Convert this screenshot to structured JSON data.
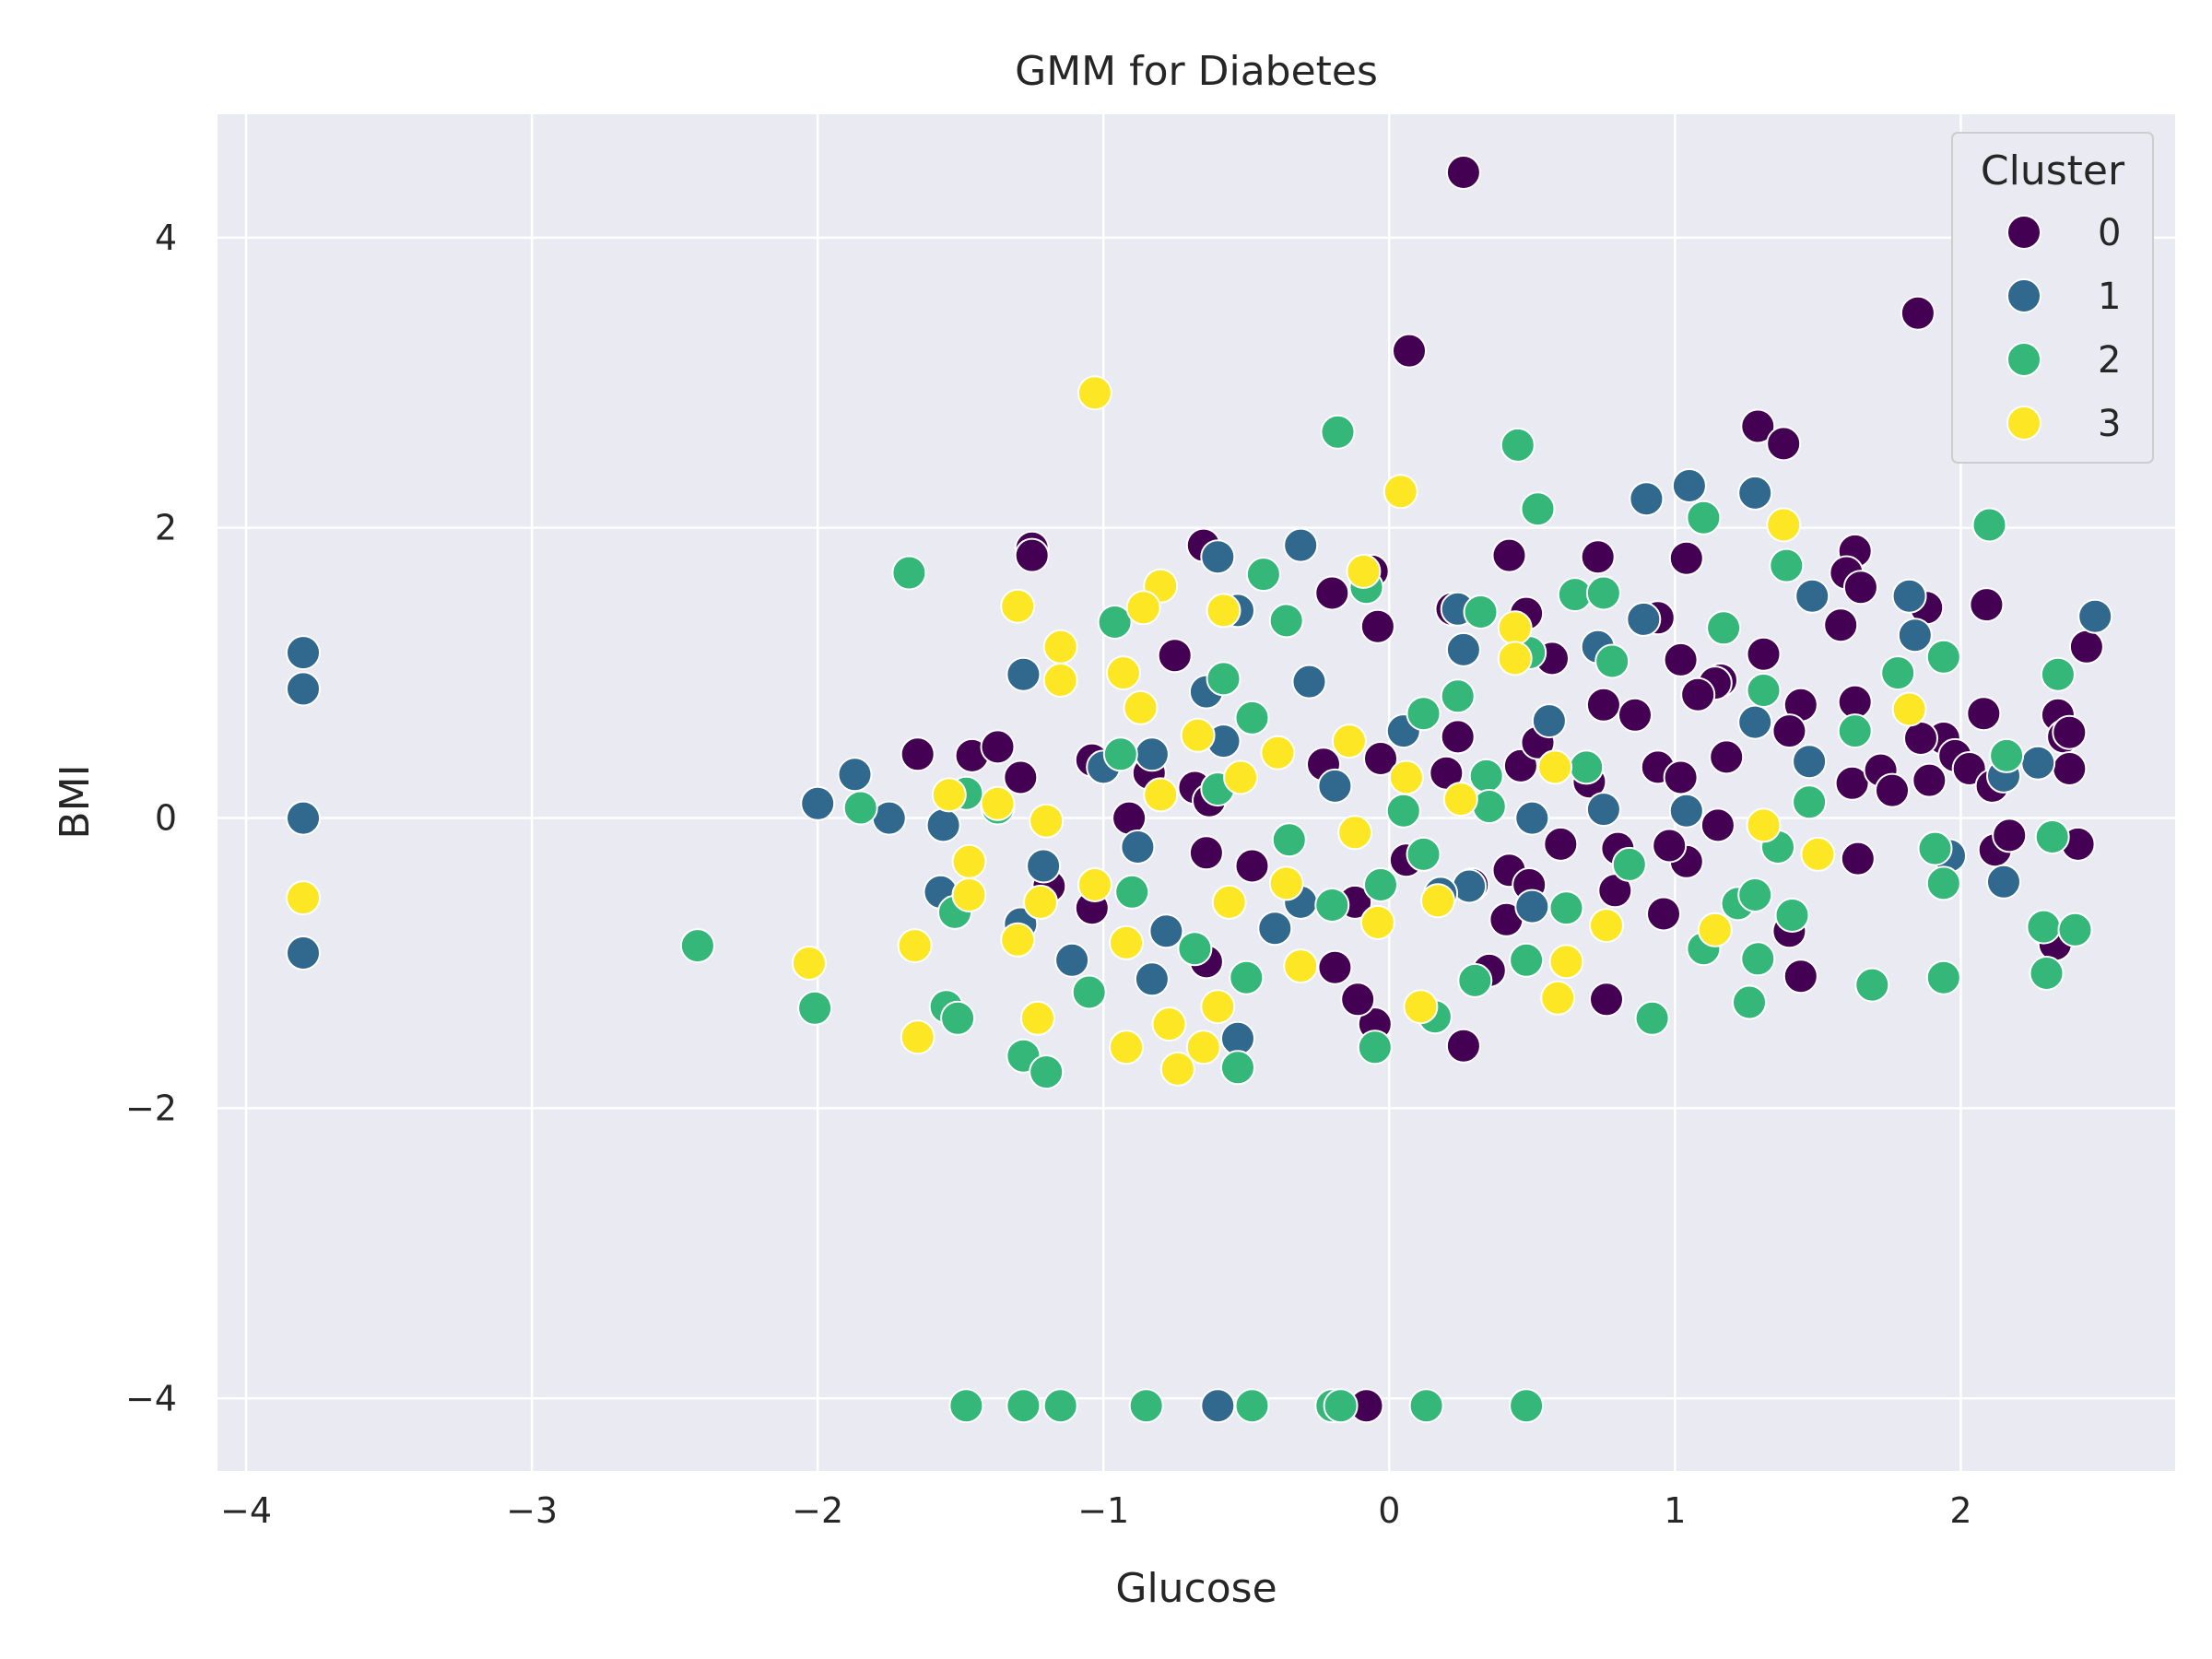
{
  "chart_data": {
    "type": "scatter",
    "title": "GMM for Diabetes",
    "xlabel": "Glucose",
    "ylabel": "BMI",
    "xlim": [
      -4.1,
      2.75
    ],
    "ylim": [
      -4.5,
      4.85
    ],
    "xticks": [
      -4,
      -3,
      -2,
      -1,
      0,
      1,
      2
    ],
    "yticks": [
      -4,
      -2,
      0,
      2,
      4
    ],
    "xtick_labels": [
      "−4",
      "−3",
      "−2",
      "−1",
      "0",
      "1",
      "2"
    ],
    "ytick_labels": [
      "−4",
      "−2",
      "0",
      "2",
      "4"
    ],
    "grid": true,
    "background": "#eaeaf2",
    "legend": {
      "title": "Cluster",
      "placement": "top-right"
    },
    "series": [
      {
        "name": "0",
        "color": "#440154",
        "points": [
          [
            0.26,
            4.45
          ],
          [
            1.85,
            3.48
          ],
          [
            0.07,
            3.22
          ],
          [
            1.29,
            2.7
          ],
          [
            1.38,
            2.58
          ],
          [
            -1.25,
            1.86
          ],
          [
            -1.25,
            1.81
          ],
          [
            -0.65,
            1.88
          ],
          [
            0.42,
            1.81
          ],
          [
            0.73,
            1.8
          ],
          [
            1.04,
            1.79
          ],
          [
            1.63,
            1.84
          ],
          [
            1.6,
            1.69
          ],
          [
            1.65,
            1.59
          ],
          [
            -0.06,
            1.7
          ],
          [
            -0.2,
            1.55
          ],
          [
            0.22,
            1.44
          ],
          [
            0.48,
            1.41
          ],
          [
            0.94,
            1.38
          ],
          [
            -0.04,
            1.32
          ],
          [
            1.58,
            1.33
          ],
          [
            1.88,
            1.45
          ],
          [
            2.09,
            1.47
          ],
          [
            -0.75,
            1.12
          ],
          [
            1.31,
            1.13
          ],
          [
            1.02,
            1.09
          ],
          [
            0.57,
            1.1
          ],
          [
            1.16,
            0.95
          ],
          [
            1.14,
            0.93
          ],
          [
            1.08,
            0.85
          ],
          [
            0.75,
            0.78
          ],
          [
            1.44,
            0.78
          ],
          [
            1.63,
            0.8
          ],
          [
            1.94,
            0.55
          ],
          [
            2.08,
            0.72
          ],
          [
            2.34,
            0.71
          ],
          [
            2.36,
            0.56
          ],
          [
            2.38,
            0.59
          ],
          [
            2.44,
            1.18
          ],
          [
            -1.65,
            0.44
          ],
          [
            -1.46,
            0.43
          ],
          [
            -1.37,
            0.49
          ],
          [
            -1.29,
            0.28
          ],
          [
            -1.04,
            0.4
          ],
          [
            -0.84,
            0.31
          ],
          [
            -0.68,
            0.21
          ],
          [
            -0.63,
            0.12
          ],
          [
            -0.23,
            0.37
          ],
          [
            -0.03,
            0.41
          ],
          [
            0.2,
            0.31
          ],
          [
            0.24,
            0.56
          ],
          [
            0.46,
            0.36
          ],
          [
            0.52,
            0.52
          ],
          [
            0.7,
            0.25
          ],
          [
            0.86,
            0.71
          ],
          [
            0.94,
            0.35
          ],
          [
            1.02,
            0.28
          ],
          [
            1.18,
            0.42
          ],
          [
            1.4,
            0.6
          ],
          [
            1.62,
            0.24
          ],
          [
            1.72,
            0.33
          ],
          [
            1.76,
            0.19
          ],
          [
            1.86,
            0.55
          ],
          [
            1.89,
            0.26
          ],
          [
            1.98,
            0.43
          ],
          [
            2.03,
            0.34
          ],
          [
            2.11,
            0.22
          ],
          [
            2.12,
            -0.22
          ],
          [
            2.17,
            -0.12
          ],
          [
            2.3,
            -0.77
          ],
          [
            2.33,
            -0.87
          ],
          [
            2.41,
            -0.18
          ],
          [
            2.38,
            0.34
          ],
          [
            1.64,
            -0.28
          ],
          [
            1.15,
            -0.05
          ],
          [
            1.04,
            -0.3
          ],
          [
            0.98,
            -0.19
          ],
          [
            0.8,
            -0.21
          ],
          [
            0.6,
            -0.18
          ],
          [
            0.42,
            -0.36
          ],
          [
            0.29,
            -0.46
          ],
          [
            0.06,
            -0.29
          ],
          [
            -0.12,
            -0.58
          ],
          [
            -0.48,
            -0.33
          ],
          [
            -0.64,
            -0.24
          ],
          [
            -0.91,
            0.0
          ],
          [
            -1.04,
            -0.62
          ],
          [
            -1.19,
            -0.47
          ],
          [
            0.35,
            -1.05
          ],
          [
            0.96,
            -0.66
          ],
          [
            1.4,
            -0.78
          ],
          [
            1.44,
            -1.09
          ],
          [
            0.76,
            -1.25
          ],
          [
            0.26,
            -1.57
          ],
          [
            -0.05,
            -1.42
          ],
          [
            -0.64,
            -0.99
          ],
          [
            -0.19,
            -1.03
          ],
          [
            -0.11,
            -1.25
          ],
          [
            0.41,
            -0.7
          ],
          [
            0.49,
            -0.46
          ],
          [
            0.79,
            -0.5
          ],
          [
            -0.08,
            -4.05
          ]
        ]
      },
      {
        "name": "1",
        "color": "#31688e",
        "points": [
          [
            -3.8,
            1.14
          ],
          [
            -3.8,
            0.89
          ],
          [
            -3.8,
            0.0
          ],
          [
            -3.8,
            -0.93
          ],
          [
            -1.87,
            0.3
          ],
          [
            -2.0,
            0.1
          ],
          [
            -1.75,
            0.0
          ],
          [
            -1.56,
            -0.05
          ],
          [
            -1.57,
            -0.51
          ],
          [
            -1.28,
            0.99
          ],
          [
            -1.29,
            -0.73
          ],
          [
            -1.21,
            -0.33
          ],
          [
            -1.11,
            -0.98
          ],
          [
            -0.6,
            1.8
          ],
          [
            -0.31,
            1.88
          ],
          [
            0.24,
            1.44
          ],
          [
            0.9,
            2.2
          ],
          [
            1.05,
            2.29
          ],
          [
            1.28,
            2.24
          ],
          [
            1.48,
            1.53
          ],
          [
            1.82,
            1.53
          ],
          [
            1.84,
            1.26
          ],
          [
            0.26,
            1.16
          ],
          [
            0.73,
            1.18
          ],
          [
            0.89,
            1.37
          ],
          [
            0.56,
            0.67
          ],
          [
            0.05,
            0.6
          ],
          [
            -0.28,
            0.94
          ],
          [
            -0.53,
            1.43
          ],
          [
            -0.83,
            0.44
          ],
          [
            -0.58,
            0.53
          ],
          [
            -0.64,
            0.87
          ],
          [
            -1.0,
            0.35
          ],
          [
            0.28,
            -0.47
          ],
          [
            0.5,
            0.0
          ],
          [
            0.75,
            0.06
          ],
          [
            1.04,
            0.05
          ],
          [
            1.28,
            0.66
          ],
          [
            1.47,
            0.39
          ],
          [
            2.15,
            0.29
          ],
          [
            2.27,
            0.38
          ],
          [
            2.47,
            1.39
          ],
          [
            1.96,
            -0.26
          ],
          [
            2.15,
            -0.44
          ],
          [
            -0.88,
            -0.2
          ],
          [
            -0.83,
            -1.11
          ],
          [
            -0.53,
            -1.52
          ],
          [
            -0.4,
            -0.76
          ],
          [
            -0.78,
            -0.78
          ],
          [
            -0.31,
            -0.58
          ],
          [
            -0.19,
            0.22
          ],
          [
            0.18,
            -0.52
          ],
          [
            0.5,
            -0.61
          ],
          [
            -0.6,
            -4.05
          ]
        ]
      },
      {
        "name": "2",
        "color": "#35b779",
        "points": [
          [
            -0.18,
            2.66
          ],
          [
            0.45,
            2.57
          ],
          [
            0.52,
            2.13
          ],
          [
            1.1,
            2.07
          ],
          [
            2.1,
            2.02
          ],
          [
            1.39,
            1.74
          ],
          [
            -1.68,
            1.69
          ],
          [
            -0.44,
            1.68
          ],
          [
            -0.08,
            1.59
          ],
          [
            0.65,
            1.54
          ],
          [
            0.75,
            1.55
          ],
          [
            1.17,
            1.31
          ],
          [
            -0.96,
            1.35
          ],
          [
            -0.36,
            1.36
          ],
          [
            0.32,
            1.42
          ],
          [
            0.49,
            1.14
          ],
          [
            0.78,
            1.08
          ],
          [
            1.31,
            0.88
          ],
          [
            1.94,
            1.11
          ],
          [
            1.78,
            1.0
          ],
          [
            2.34,
            0.99
          ],
          [
            -0.58,
            0.96
          ],
          [
            -0.48,
            0.69
          ],
          [
            0.12,
            0.72
          ],
          [
            0.24,
            0.84
          ],
          [
            0.69,
            0.35
          ],
          [
            0.34,
            0.29
          ],
          [
            1.63,
            0.6
          ],
          [
            2.16,
            0.43
          ],
          [
            -1.85,
            0.07
          ],
          [
            -1.48,
            0.17
          ],
          [
            -1.37,
            0.07
          ],
          [
            -1.52,
            -0.65
          ],
          [
            -1.55,
            -1.3
          ],
          [
            -1.51,
            -1.38
          ],
          [
            -1.28,
            -1.64
          ],
          [
            -1.2,
            -1.75
          ],
          [
            -2.42,
            -0.88
          ],
          [
            -2.01,
            -1.31
          ],
          [
            -0.94,
            0.44
          ],
          [
            -0.9,
            -0.51
          ],
          [
            -1.05,
            -1.2
          ],
          [
            -0.68,
            -0.9
          ],
          [
            -0.5,
            -1.1
          ],
          [
            -0.53,
            -1.72
          ],
          [
            -0.03,
            -0.46
          ],
          [
            -0.05,
            -1.58
          ],
          [
            0.12,
            -0.25
          ],
          [
            0.16,
            -1.37
          ],
          [
            0.3,
            -1.12
          ],
          [
            0.48,
            -0.98
          ],
          [
            0.62,
            -0.62
          ],
          [
            0.84,
            -0.32
          ],
          [
            0.92,
            -1.38
          ],
          [
            1.1,
            -0.9
          ],
          [
            1.22,
            -0.59
          ],
          [
            1.28,
            -0.53
          ],
          [
            1.29,
            -0.97
          ],
          [
            1.26,
            -1.27
          ],
          [
            1.36,
            -0.2
          ],
          [
            1.47,
            0.11
          ],
          [
            1.41,
            -0.67
          ],
          [
            1.69,
            -1.15
          ],
          [
            1.94,
            -0.45
          ],
          [
            1.94,
            -1.1
          ],
          [
            1.91,
            -0.21
          ],
          [
            2.29,
            -0.75
          ],
          [
            2.32,
            -0.13
          ],
          [
            2.3,
            -1.07
          ],
          [
            2.4,
            -0.77
          ],
          [
            0.05,
            0.05
          ],
          [
            0.35,
            0.08
          ],
          [
            -0.35,
            -0.15
          ],
          [
            -0.6,
            0.2
          ],
          [
            -0.2,
            -0.6
          ],
          [
            -1.48,
            -4.05
          ],
          [
            -1.28,
            -4.05
          ],
          [
            -1.15,
            -4.05
          ],
          [
            -0.85,
            -4.05
          ],
          [
            -0.48,
            -4.05
          ],
          [
            -0.2,
            -4.05
          ],
          [
            -0.17,
            -4.05
          ],
          [
            0.13,
            -4.05
          ],
          [
            0.48,
            -4.05
          ]
        ]
      },
      {
        "name": "3",
        "color": "#fde725",
        "points": [
          [
            -1.03,
            2.93
          ],
          [
            0.04,
            2.25
          ],
          [
            1.38,
            2.02
          ],
          [
            -0.8,
            1.6
          ],
          [
            -0.86,
            1.45
          ],
          [
            -0.58,
            1.43
          ],
          [
            -0.09,
            1.7
          ],
          [
            -1.3,
            1.46
          ],
          [
            -1.15,
            1.18
          ],
          [
            -0.93,
            1.0
          ],
          [
            0.44,
            1.31
          ],
          [
            0.44,
            1.1
          ],
          [
            -1.15,
            0.95
          ],
          [
            -0.87,
            0.76
          ],
          [
            -0.67,
            0.57
          ],
          [
            -0.39,
            0.45
          ],
          [
            -0.14,
            0.53
          ],
          [
            0.06,
            0.28
          ],
          [
            0.25,
            0.13
          ],
          [
            1.82,
            0.75
          ],
          [
            -1.54,
            0.16
          ],
          [
            -1.37,
            0.1
          ],
          [
            -1.2,
            -0.02
          ],
          [
            -1.47,
            -0.3
          ],
          [
            -1.47,
            -0.53
          ],
          [
            -1.22,
            -0.58
          ],
          [
            -1.03,
            -0.46
          ],
          [
            -1.3,
            -0.84
          ],
          [
            -1.23,
            -1.38
          ],
          [
            -1.66,
            -0.88
          ],
          [
            -1.65,
            -1.51
          ],
          [
            -2.03,
            -1.0
          ],
          [
            -3.8,
            -0.55
          ],
          [
            -0.92,
            -0.86
          ],
          [
            -0.92,
            -1.58
          ],
          [
            -0.77,
            -1.42
          ],
          [
            -0.74,
            -1.73
          ],
          [
            -0.65,
            -1.58
          ],
          [
            -0.6,
            -1.3
          ],
          [
            -0.56,
            -0.58
          ],
          [
            -0.31,
            -1.02
          ],
          [
            -0.36,
            -0.45
          ],
          [
            -0.12,
            -0.1
          ],
          [
            -0.04,
            -0.72
          ],
          [
            0.11,
            -1.3
          ],
          [
            0.17,
            -0.57
          ],
          [
            0.59,
            -1.24
          ],
          [
            0.62,
            -0.99
          ],
          [
            0.76,
            -0.74
          ],
          [
            1.14,
            -0.77
          ],
          [
            1.5,
            -0.25
          ],
          [
            1.31,
            -0.05
          ],
          [
            0.58,
            0.35
          ],
          [
            -0.52,
            0.28
          ],
          [
            -0.8,
            0.16
          ]
        ]
      }
    ]
  }
}
